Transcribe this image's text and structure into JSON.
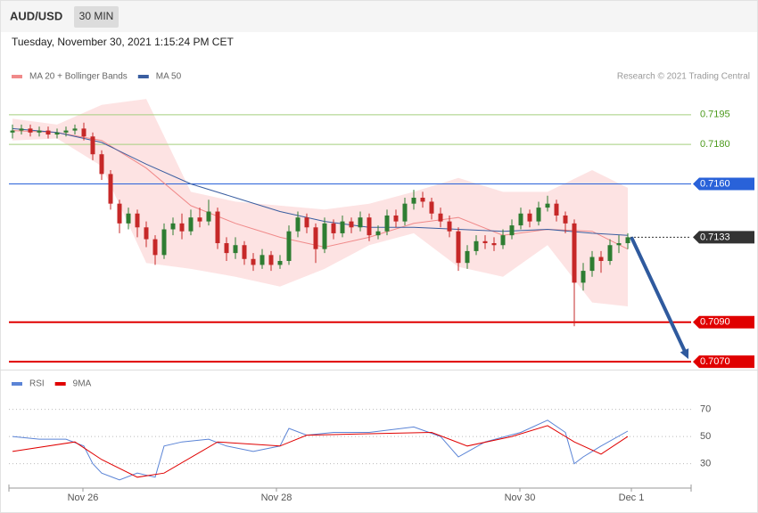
{
  "header": {
    "symbol": "AUD/USD",
    "interval": "30 MIN",
    "datetime": "Tuesday, November 30, 2021 1:15:24 PM CET",
    "credit": "Research © 2021 Trading Central"
  },
  "chart_data": [
    {
      "type": "candlestick",
      "up_color": "#2e7d32",
      "down_color": "#c62828",
      "ylim": [
        0.7066,
        0.7208
      ],
      "xlim": [
        -0.4,
        76.1
      ],
      "xticks": [
        {
          "value": 7.9,
          "label": "Nov 26"
        },
        {
          "value": 29.6,
          "label": "Nov 28"
        },
        {
          "value": 56.9,
          "label": "Nov 30"
        },
        {
          "value": 69.4,
          "label": "Dec 1"
        }
      ],
      "candles": [
        [
          0.7186,
          0.719,
          0.7183,
          0.7187
        ],
        [
          0.7187,
          0.719,
          0.7185,
          0.7188
        ],
        [
          0.7188,
          0.719,
          0.7184,
          0.7186
        ],
        [
          0.7186,
          0.7189,
          0.7184,
          0.7187
        ],
        [
          0.7187,
          0.7189,
          0.7183,
          0.7185
        ],
        [
          0.7185,
          0.7188,
          0.7183,
          0.7186
        ],
        [
          0.7186,
          0.7189,
          0.7184,
          0.7187
        ],
        [
          0.7187,
          0.719,
          0.7185,
          0.7188
        ],
        [
          0.7188,
          0.7191,
          0.7182,
          0.7184
        ],
        [
          0.7184,
          0.7186,
          0.7172,
          0.7175
        ],
        [
          0.7175,
          0.7177,
          0.7162,
          0.7165
        ],
        [
          0.7165,
          0.7167,
          0.7147,
          0.715
        ],
        [
          0.715,
          0.7152,
          0.7135,
          0.714
        ],
        [
          0.714,
          0.7148,
          0.7137,
          0.7145
        ],
        [
          0.7145,
          0.7147,
          0.7133,
          0.7138
        ],
        [
          0.7138,
          0.7141,
          0.7128,
          0.7132
        ],
        [
          0.7132,
          0.7134,
          0.7119,
          0.7124
        ],
        [
          0.7124,
          0.714,
          0.7122,
          0.7137
        ],
        [
          0.7137,
          0.7143,
          0.7134,
          0.714
        ],
        [
          0.714,
          0.7145,
          0.7132,
          0.7136
        ],
        [
          0.7136,
          0.7147,
          0.7134,
          0.7143
        ],
        [
          0.7143,
          0.7148,
          0.7138,
          0.7141
        ],
        [
          0.7141,
          0.7152,
          0.7139,
          0.7146
        ],
        [
          0.7146,
          0.7148,
          0.7127,
          0.713
        ],
        [
          0.713,
          0.7133,
          0.7121,
          0.7125
        ],
        [
          0.7125,
          0.7133,
          0.7122,
          0.7129
        ],
        [
          0.7129,
          0.7131,
          0.7119,
          0.7122
        ],
        [
          0.7122,
          0.7125,
          0.7116,
          0.7119
        ],
        [
          0.7119,
          0.7127,
          0.7117,
          0.7124
        ],
        [
          0.7124,
          0.7126,
          0.7116,
          0.7119
        ],
        [
          0.7119,
          0.7124,
          0.7117,
          0.7121
        ],
        [
          0.7121,
          0.7139,
          0.7119,
          0.7136
        ],
        [
          0.7136,
          0.7146,
          0.7133,
          0.7143
        ],
        [
          0.7143,
          0.7145,
          0.7135,
          0.7138
        ],
        [
          0.7138,
          0.714,
          0.712,
          0.7127
        ],
        [
          0.7127,
          0.7143,
          0.7125,
          0.714
        ],
        [
          0.714,
          0.7142,
          0.7132,
          0.7135
        ],
        [
          0.7135,
          0.7144,
          0.7133,
          0.7141
        ],
        [
          0.7141,
          0.7143,
          0.7135,
          0.7138
        ],
        [
          0.7138,
          0.7146,
          0.7136,
          0.7143
        ],
        [
          0.7143,
          0.7145,
          0.7131,
          0.7134
        ],
        [
          0.7134,
          0.7139,
          0.7132,
          0.7136
        ],
        [
          0.7136,
          0.7147,
          0.7134,
          0.7144
        ],
        [
          0.7144,
          0.7147,
          0.7138,
          0.7141
        ],
        [
          0.7141,
          0.7153,
          0.7139,
          0.715
        ],
        [
          0.715,
          0.7157,
          0.7147,
          0.7153
        ],
        [
          0.7153,
          0.7156,
          0.7148,
          0.7151
        ],
        [
          0.7151,
          0.7153,
          0.7142,
          0.7145
        ],
        [
          0.7145,
          0.7148,
          0.7138,
          0.7141
        ],
        [
          0.7141,
          0.7144,
          0.7133,
          0.7136
        ],
        [
          0.7136,
          0.7138,
          0.7116,
          0.712
        ],
        [
          0.712,
          0.7129,
          0.7117,
          0.7126
        ],
        [
          0.7126,
          0.7134,
          0.7124,
          0.7131
        ],
        [
          0.7131,
          0.7134,
          0.7127,
          0.713
        ],
        [
          0.713,
          0.7133,
          0.7126,
          0.7129
        ],
        [
          0.7129,
          0.7137,
          0.7127,
          0.7134
        ],
        [
          0.7134,
          0.7142,
          0.7132,
          0.7139
        ],
        [
          0.7139,
          0.7148,
          0.7137,
          0.7145
        ],
        [
          0.7145,
          0.7147,
          0.7138,
          0.7141
        ],
        [
          0.7141,
          0.7151,
          0.7139,
          0.7148
        ],
        [
          0.7148,
          0.7154,
          0.7146,
          0.715
        ],
        [
          0.715,
          0.7152,
          0.7141,
          0.7144
        ],
        [
          0.7144,
          0.7146,
          0.7135,
          0.714
        ],
        [
          0.714,
          0.7142,
          0.7088,
          0.711
        ],
        [
          0.711,
          0.712,
          0.7106,
          0.7116
        ],
        [
          0.7116,
          0.7126,
          0.7113,
          0.7123
        ],
        [
          0.7123,
          0.7126,
          0.7115,
          0.7121
        ],
        [
          0.7121,
          0.7132,
          0.7119,
          0.7129
        ],
        [
          0.7129,
          0.7134,
          0.7125,
          0.713
        ],
        [
          0.713,
          0.7135,
          0.7127,
          0.7133
        ]
      ],
      "bands": {
        "color": "#fde3e3",
        "x": [
          0,
          5,
          10,
          15,
          20,
          25,
          30,
          35,
          40,
          45,
          50,
          55,
          60,
          65,
          69
        ],
        "upper": [
          0.7193,
          0.719,
          0.72,
          0.7203,
          0.7156,
          0.7151,
          0.7149,
          0.7147,
          0.715,
          0.7156,
          0.7163,
          0.7156,
          0.7156,
          0.7167,
          0.7158
        ],
        "lower": [
          0.7182,
          0.7183,
          0.7169,
          0.712,
          0.7117,
          0.7113,
          0.7108,
          0.7117,
          0.7129,
          0.7135,
          0.7118,
          0.7113,
          0.7129,
          0.71,
          0.7098
        ]
      },
      "series": [
        {
          "name": "MA 20 + Bollinger Bands",
          "color": "#f08a8a",
          "x": [
            0,
            5,
            10,
            15,
            20,
            25,
            30,
            35,
            40,
            45,
            50,
            55,
            60,
            65,
            69
          ],
          "values": [
            0.7187,
            0.7186,
            0.7182,
            0.7168,
            0.7149,
            0.714,
            0.7133,
            0.7128,
            0.7133,
            0.714,
            0.7143,
            0.7134,
            0.7137,
            0.7136,
            0.7127
          ]
        },
        {
          "name": "MA 50",
          "color": "#3a5ea0",
          "x": [
            0,
            5,
            10,
            15,
            20,
            25,
            30,
            35,
            40,
            45,
            50,
            55,
            60,
            65,
            69
          ],
          "values": [
            0.7188,
            0.7186,
            0.7181,
            0.717,
            0.716,
            0.7153,
            0.7146,
            0.7141,
            0.7138,
            0.7138,
            0.7137,
            0.7136,
            0.7137,
            0.7135,
            0.7134
          ]
        }
      ],
      "levels": [
        {
          "value": 0.7195,
          "label": "0.7195",
          "color": "#a5cf7e",
          "text_color": "#4c9a1c",
          "box": false
        },
        {
          "value": 0.718,
          "label": "0.7180",
          "color": "#a5cf7e",
          "text_color": "#4c9a1c",
          "box": false
        },
        {
          "value": 0.716,
          "label": "0.7160",
          "color": "#2962d9",
          "text_color": "#ffffff",
          "box": true
        },
        {
          "value": 0.7133,
          "label": "0.7133",
          "color": "#333333",
          "text_color": "#ffffff",
          "box": true,
          "dotted": true
        },
        {
          "value": 0.709,
          "label": "0.7090",
          "color": "#e00000",
          "text_color": "#ffffff",
          "box": true
        },
        {
          "value": 0.707,
          "label": "0.7070",
          "color": "#e00000",
          "text_color": "#ffffff",
          "box": true
        }
      ],
      "arrow_color": "#2f5a9e"
    },
    {
      "type": "line",
      "ylim": [
        12,
        96
      ],
      "yticks": [
        70,
        50,
        30
      ],
      "grid": true,
      "series": [
        {
          "name": "RSI",
          "color": "#5b84d6",
          "x": [
            0,
            3,
            6,
            8,
            9,
            10,
            12,
            14,
            16,
            17,
            19,
            22,
            24,
            27,
            30,
            31,
            33,
            36,
            40,
            45,
            48,
            50,
            53,
            57,
            60,
            62,
            63,
            64,
            66,
            69
          ],
          "values": [
            50,
            48,
            48,
            43,
            30,
            23,
            18,
            23,
            20,
            43,
            46,
            48,
            43,
            39,
            43,
            56,
            51,
            53,
            53,
            57,
            50,
            35,
            46,
            53,
            62,
            53,
            30,
            35,
            43,
            54
          ]
        },
        {
          "name": "9MA",
          "color": "#e00000",
          "x": [
            0,
            7,
            10,
            14,
            17,
            23,
            30,
            33,
            40,
            47,
            51,
            56,
            60,
            63,
            66,
            69
          ],
          "values": [
            39,
            46,
            33,
            20,
            23,
            46,
            43,
            51,
            52,
            53,
            43,
            50,
            58,
            46,
            37,
            50
          ]
        }
      ]
    }
  ]
}
